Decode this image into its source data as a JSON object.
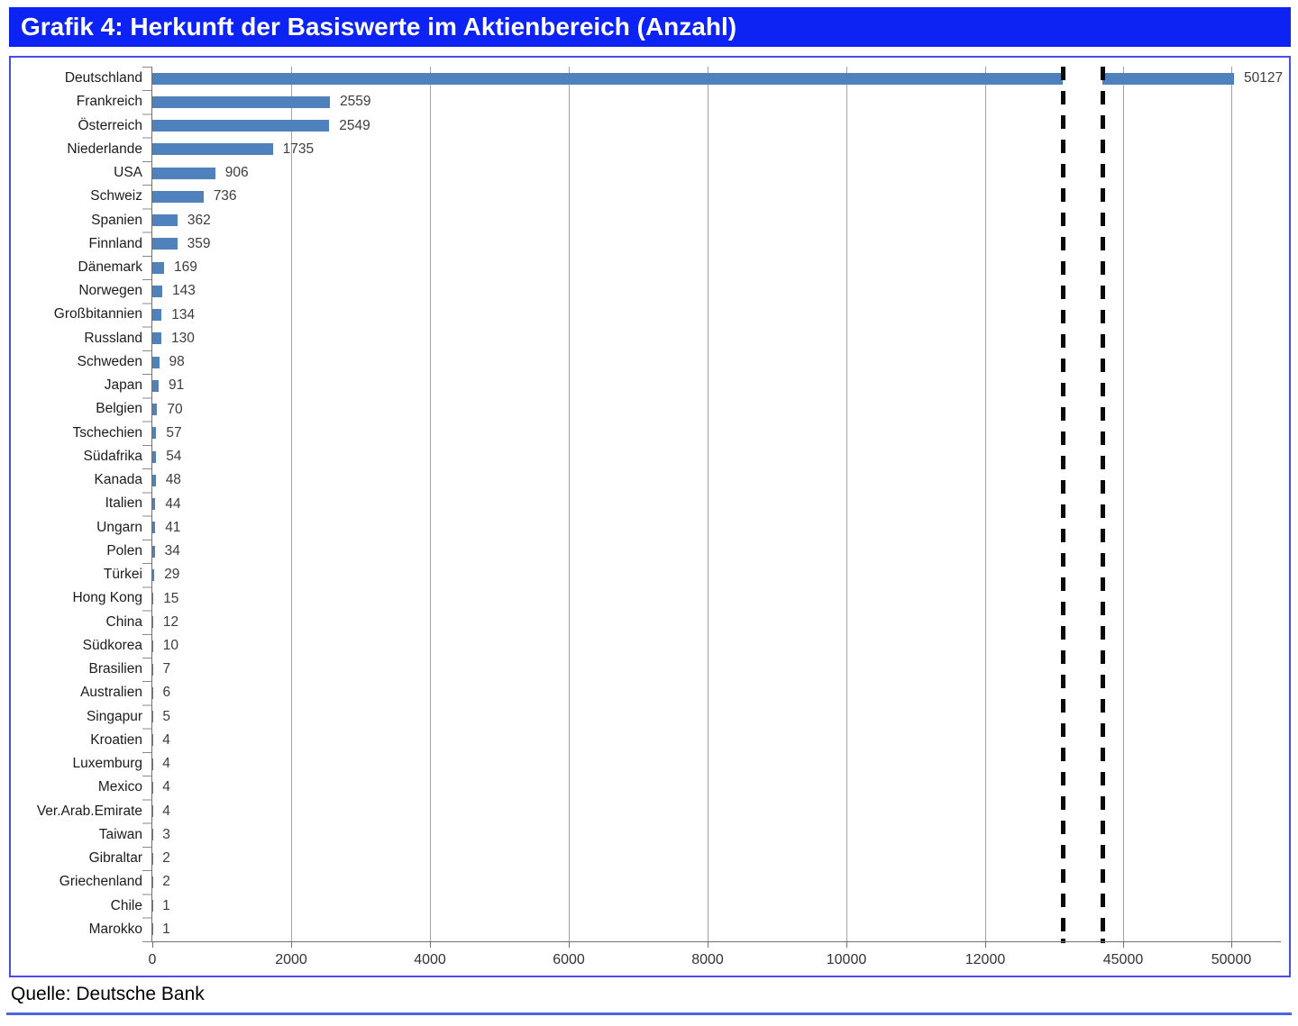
{
  "header": {
    "title": "Grafik 4: Herkunft der Basiswerte im Aktienbereich (Anzahl)"
  },
  "footer": {
    "source": "Quelle: Deutsche Bank"
  },
  "colors": {
    "title_bg": "#0d23f3",
    "title_text": "#ffffff",
    "bar": "#4f81bd",
    "gridline": "#a3a3a3",
    "axis": "#6f6f6f",
    "box_border": "#4c4ce6",
    "bottom_rule": "#4a66e0",
    "break_dash": "#0a0a0a"
  },
  "chart_data": {
    "type": "bar",
    "orientation": "horizontal",
    "title": "Grafik 4: Herkunft der Basiswerte im Aktienbereich (Anzahl)",
    "xlabel": "",
    "ylabel": "",
    "grid": true,
    "legend": false,
    "value_labels": true,
    "axis_break": {
      "present": true,
      "left_segment_max": 13100,
      "right_segment_min": 44000,
      "right_segment_max": 51800
    },
    "x_ticks_left": [
      0,
      2000,
      4000,
      6000,
      8000,
      10000,
      12000
    ],
    "x_ticks_right": [
      45000,
      50000
    ],
    "categories": [
      "Deutschland",
      "Frankreich",
      "Österreich",
      "Niederlande",
      "USA",
      "Schweiz",
      "Spanien",
      "Finnland",
      "Dänemark",
      "Norwegen",
      "Großbitannien",
      "Russland",
      "Schweden",
      "Japan",
      "Belgien",
      "Tschechien",
      "Südafrika",
      "Kanada",
      "Italien",
      "Ungarn",
      "Polen",
      "Türkei",
      "Hong Kong",
      "China",
      "Südkorea",
      "Brasilien",
      "Australien",
      "Singapur",
      "Kroatien",
      "Luxemburg",
      "Mexico",
      "Ver.Arab.Emirate",
      "Taiwan",
      "Gibraltar",
      "Griechenland",
      "Chile",
      "Marokko"
    ],
    "values": [
      50127,
      2559,
      2549,
      1735,
      906,
      736,
      362,
      359,
      169,
      143,
      134,
      130,
      98,
      91,
      70,
      57,
      54,
      48,
      44,
      41,
      34,
      29,
      15,
      12,
      10,
      7,
      6,
      5,
      4,
      4,
      4,
      4,
      3,
      2,
      2,
      1,
      1
    ]
  }
}
